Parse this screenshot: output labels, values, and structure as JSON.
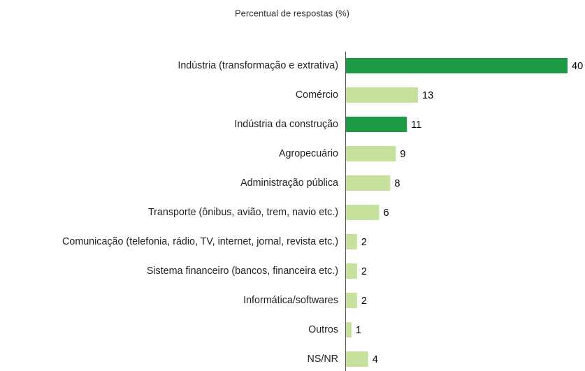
{
  "chart_data": {
    "type": "bar",
    "orientation": "horizontal",
    "subtitle": "Percentual de respostas (%)",
    "categories": [
      "Indústria (transformação e extrativa)",
      "Comércio",
      "Indústria da construção",
      "Agropecuário",
      "Administração pública",
      "Transporte (ônibus, avião, trem, navio etc.)",
      "Comunicação (telefonia, rádio, TV, internet, jornal, revista etc.)",
      "Sistema financeiro (bancos, financeira etc.)",
      "Informática/softwares",
      "Outros",
      "NS/NR"
    ],
    "values": [
      40,
      13,
      11,
      9,
      8,
      6,
      2,
      2,
      2,
      1,
      4
    ],
    "colors": [
      "#1e9a46",
      "#c6e19c",
      "#1e9a46",
      "#c6e19c",
      "#c6e19c",
      "#c6e19c",
      "#c6e19c",
      "#c6e19c",
      "#c6e19c",
      "#c6e19c",
      "#c6e19c"
    ]
  }
}
